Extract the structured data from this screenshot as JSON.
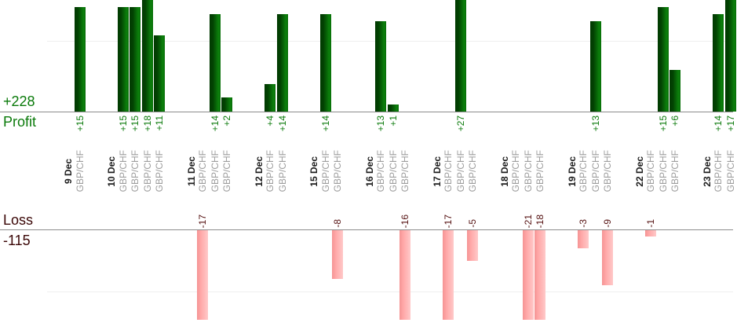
{
  "chart_data": {
    "type": "bar",
    "symbol": "GBP/CHF",
    "profit_total": "+228",
    "profit_label": "Profit",
    "loss_total": "-115",
    "loss_label": "Loss",
    "legend_position": "left",
    "grid": true,
    "gridline_values": {
      "profit": 10,
      "loss": -10
    },
    "profit_axis_visible_max": 16,
    "loss_axis_visible_min": -14.6,
    "categories": [
      "9 Dec",
      "10 Dec",
      "11 Dec",
      "12 Dec",
      "15 Dec",
      "16 Dec",
      "17 Dec",
      "18 Dec",
      "19 Dec",
      "22 Dec",
      "23 Dec"
    ],
    "groups": [
      {
        "date": "9 Dec",
        "trades": [
          15
        ]
      },
      {
        "date": "10 Dec",
        "trades": [
          15,
          15,
          18,
          11
        ]
      },
      {
        "date": "11 Dec",
        "trades": [
          -17,
          14,
          2
        ]
      },
      {
        "date": "12 Dec",
        "trades": [
          4,
          14
        ]
      },
      {
        "date": "15 Dec",
        "trades": [
          14,
          -8
        ]
      },
      {
        "date": "16 Dec",
        "trades": [
          13,
          1,
          -16
        ]
      },
      {
        "date": "17 Dec",
        "trades": [
          -17,
          27,
          -5
        ]
      },
      {
        "date": "18 Dec",
        "trades": [
          0,
          -21,
          -18
        ]
      },
      {
        "date": "19 Dec",
        "trades": [
          -3,
          13,
          -9
        ]
      },
      {
        "date": "22 Dec",
        "trades": [
          -1,
          15,
          6
        ]
      },
      {
        "date": "23 Dec",
        "trades": [
          14,
          17
        ]
      }
    ],
    "colors": {
      "profit_green": "#0a7a0a",
      "profit_bar_dark": "#024202",
      "profit_bar_light": "#0c810c",
      "loss_bar_pink": "#ffa8a8",
      "loss_value_text": "#541010",
      "loss_title_text": "#3a0606",
      "axis_line": "#8c8c8c",
      "gridline": "#efefef",
      "date_text": "#1c1c1c",
      "symbol_text": "#9c9c9c"
    }
  }
}
